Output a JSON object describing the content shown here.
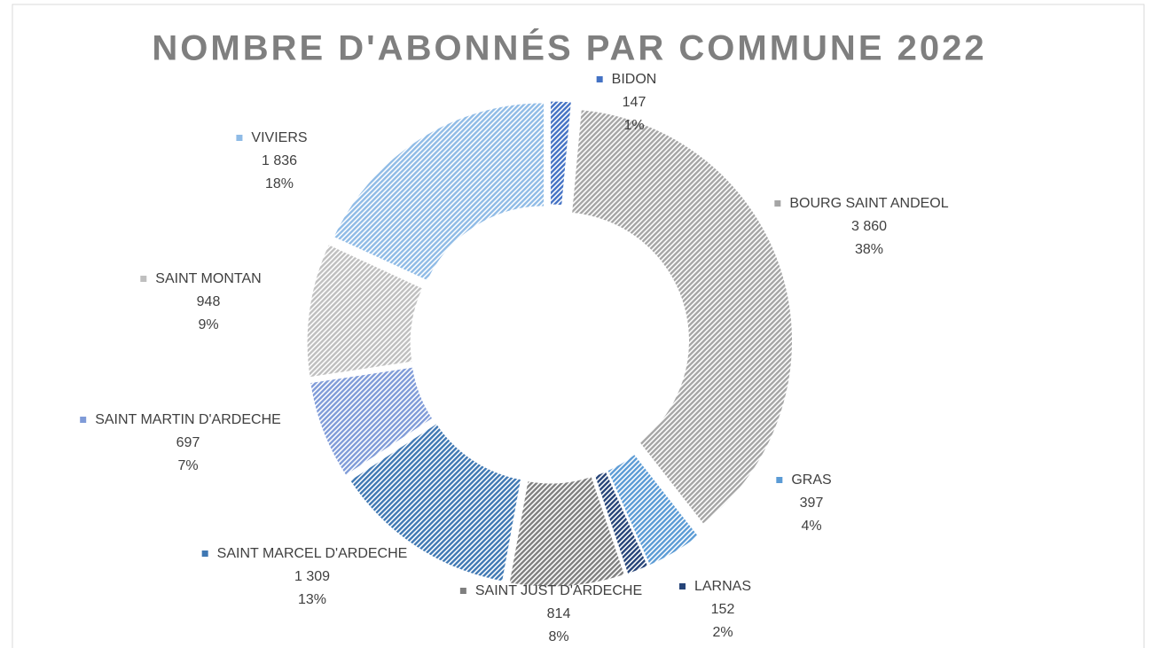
{
  "chart_data": {
    "type": "donut",
    "title": "NOMBRE D'ABONNÉS PAR COMMUNE 2022",
    "categories": [
      "BIDON",
      "BOURG SAINT ANDEOL",
      "GRAS",
      "LARNAS",
      "SAINT JUST D'ARDECHE",
      "SAINT MARCEL D'ARDECHE",
      "SAINT MARTIN D'ARDECHE",
      "SAINT MONTAN",
      "VIVIERS"
    ],
    "values": [
      147,
      3860,
      397,
      152,
      814,
      1309,
      697,
      948,
      1836
    ],
    "value_labels": [
      "147",
      "3 860",
      "397",
      "152",
      "814",
      "1 309",
      "697",
      "948",
      "1 836"
    ],
    "percent_labels": [
      "1%",
      "38%",
      "4%",
      "2%",
      "8%",
      "13%",
      "7%",
      "9%",
      "18%"
    ],
    "colors": [
      "#4472c4",
      "#a5a5a5",
      "#5b9bd5",
      "#264478",
      "#7f7f7f",
      "#3f78b3",
      "#7f9bd8",
      "#bfbfbf",
      "#8fbbe6"
    ]
  }
}
